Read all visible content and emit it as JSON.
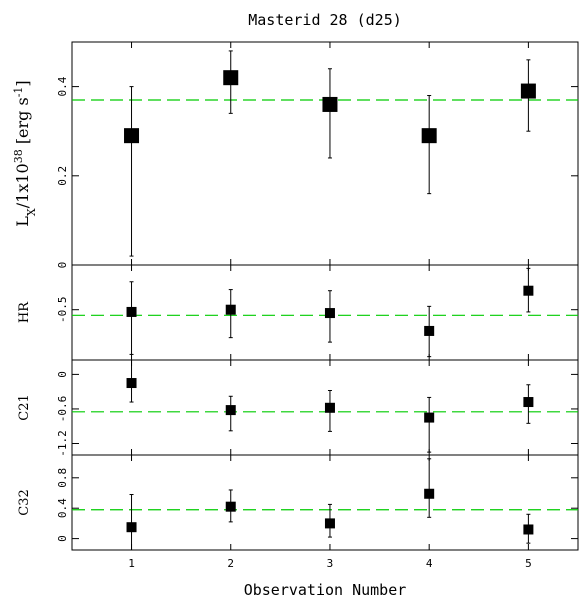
{
  "chart_data": {
    "title": "Masterid 28 (d25)",
    "xlabel": "Observation Number",
    "type": "scatter",
    "x_ticks": [
      1,
      2,
      3,
      4,
      5
    ],
    "xlim": [
      0.4,
      5.5
    ],
    "reference_line_color": "#00cc00",
    "panels": [
      {
        "id": "lx",
        "ylabel": {
          "main": "L",
          "sub": "X",
          "mid": "/1x10",
          "sup": "38",
          "end": " [erg s",
          "sup2": "-1",
          "close": "]"
        },
        "ylim": [
          0.0,
          0.5
        ],
        "yticks": [
          {
            "v": 0.0,
            "label": "0"
          },
          {
            "v": 0.2,
            "label": "0.2"
          },
          {
            "v": 0.4,
            "label": "0.4"
          }
        ],
        "reference": 0.37,
        "points": [
          {
            "x": 1,
            "y": 0.29,
            "err_low": 0.02,
            "err_high": 0.4
          },
          {
            "x": 2,
            "y": 0.42,
            "err_low": 0.34,
            "err_high": 0.48
          },
          {
            "x": 3,
            "y": 0.36,
            "err_low": 0.24,
            "err_high": 0.44
          },
          {
            "x": 4,
            "y": 0.29,
            "err_low": 0.16,
            "err_high": 0.38
          },
          {
            "x": 5,
            "y": 0.39,
            "err_low": 0.3,
            "err_high": 0.46
          }
        ]
      },
      {
        "id": "hr",
        "ylabel": {
          "main": "HR"
        },
        "ylim": [
          -0.95,
          -0.1
        ],
        "yticks": [
          {
            "v": -0.5,
            "label": "-0.5"
          }
        ],
        "reference": -0.55,
        "points": [
          {
            "x": 1,
            "y": -0.52,
            "err_low": -0.9,
            "err_high": -0.25
          },
          {
            "x": 2,
            "y": -0.5,
            "err_low": -0.75,
            "err_high": -0.32
          },
          {
            "x": 3,
            "y": -0.53,
            "err_low": -0.79,
            "err_high": -0.33
          },
          {
            "x": 4,
            "y": -0.69,
            "err_low": -0.92,
            "err_high": -0.47
          },
          {
            "x": 5,
            "y": -0.33,
            "err_low": -0.52,
            "err_high": -0.13
          }
        ]
      },
      {
        "id": "c21",
        "ylabel": {
          "main": "C21"
        },
        "ylim": [
          -1.4,
          0.25
        ],
        "yticks": [
          {
            "v": 0.0,
            "label": "0"
          },
          {
            "v": -0.6,
            "label": "-0.6"
          },
          {
            "v": -1.2,
            "label": "-1.2"
          }
        ],
        "reference": -0.65,
        "points": [
          {
            "x": 1,
            "y": -0.15,
            "err_low": -0.48,
            "err_high": 0.25
          },
          {
            "x": 2,
            "y": -0.62,
            "err_low": -0.98,
            "err_high": -0.38
          },
          {
            "x": 3,
            "y": -0.58,
            "err_low": -0.99,
            "err_high": -0.28
          },
          {
            "x": 4,
            "y": -0.75,
            "err_low": -1.35,
            "err_high": -0.4
          },
          {
            "x": 5,
            "y": -0.48,
            "err_low": -0.85,
            "err_high": -0.18
          }
        ]
      },
      {
        "id": "c32",
        "ylabel": {
          "main": "C32"
        },
        "ylim": [
          -0.15,
          1.1
        ],
        "yticks": [
          {
            "v": 0.0,
            "label": "0"
          },
          {
            "v": 0.4,
            "label": "0.4"
          },
          {
            "v": 0.8,
            "label": "0.8"
          }
        ],
        "reference": 0.38,
        "points": [
          {
            "x": 1,
            "y": 0.15,
            "err_low": -0.15,
            "err_high": 0.58
          },
          {
            "x": 2,
            "y": 0.42,
            "err_low": 0.22,
            "err_high": 0.64
          },
          {
            "x": 3,
            "y": 0.2,
            "err_low": 0.02,
            "err_high": 0.45
          },
          {
            "x": 4,
            "y": 0.59,
            "err_low": 0.28,
            "err_high": 1.05
          },
          {
            "x": 5,
            "y": 0.12,
            "err_low": -0.06,
            "err_high": 0.32
          }
        ]
      }
    ]
  }
}
